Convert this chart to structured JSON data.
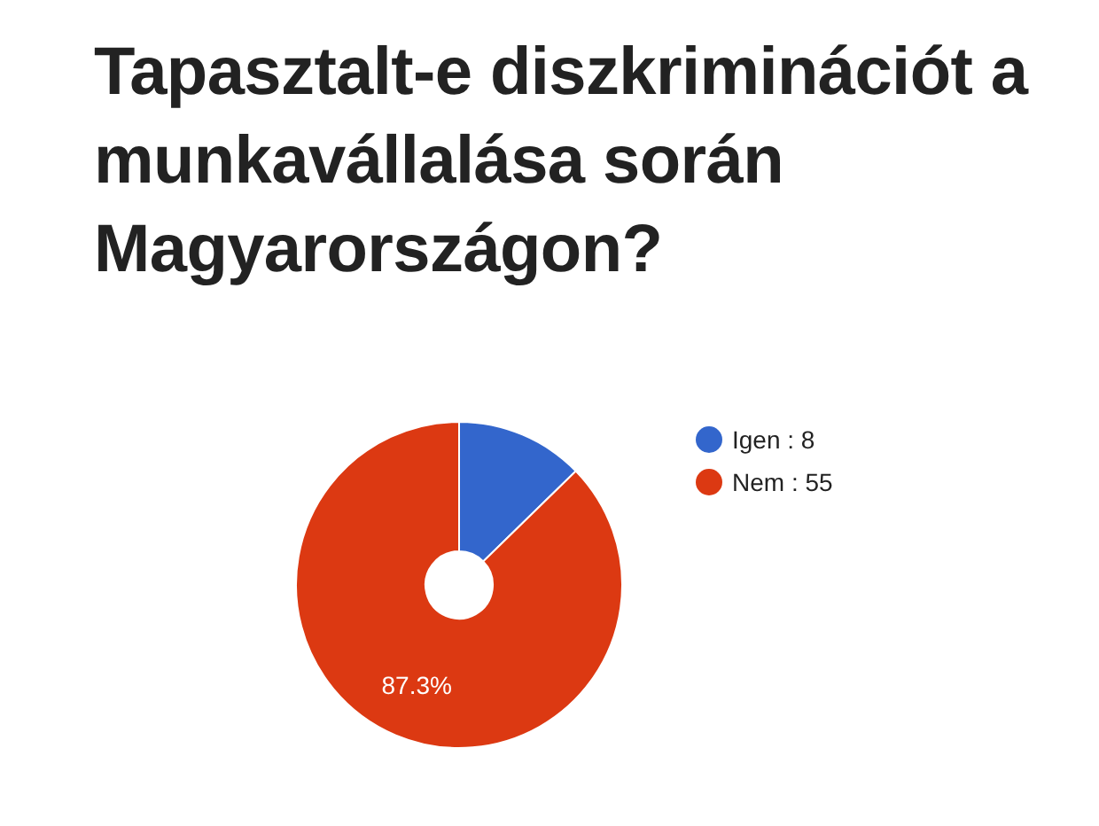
{
  "chart_data": {
    "type": "donut",
    "title": "Tapasztalt-e diszkriminációt a munkavállalása során Magyarországon?",
    "categories": [
      "Igen : 8",
      "Nem : 55"
    ],
    "values": [
      12.7,
      87.3
    ],
    "colors": [
      "#3366cc",
      "#dc3912"
    ],
    "value_labels": [
      null,
      "87.3%"
    ],
    "legend": "right"
  }
}
